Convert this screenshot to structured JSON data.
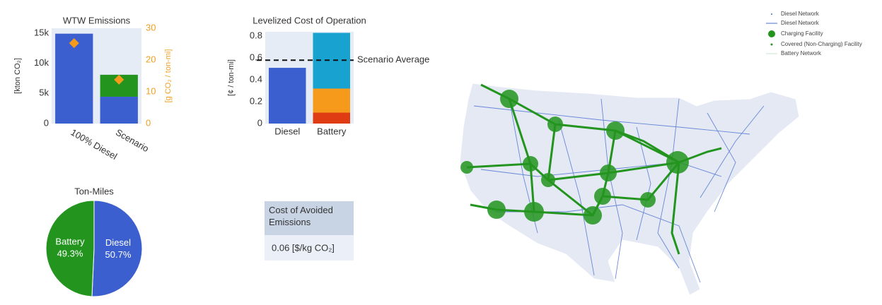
{
  "chart_data": [
    {
      "type": "bar",
      "title": "WTW Emissions",
      "stacked": true,
      "categories": [
        "100% Diesel",
        "Scenario"
      ],
      "ylabel": "[kton CO₂]",
      "ylim": [
        0,
        15800
      ],
      "yticks": [
        0,
        {
          "value": 5000,
          "label": "5k"
        },
        {
          "value": 10000,
          "label": "10k"
        },
        {
          "value": 15000,
          "label": "15k"
        }
      ],
      "y2label": "[g CO₂ / ton-mi]",
      "y2lim": [
        0,
        30
      ],
      "y2ticks": [
        0,
        10,
        20,
        30
      ],
      "y2color": "#f0a020",
      "series": [
        {
          "color": "#3b5fce",
          "values": [
            14900,
            4450
          ]
        },
        {
          "color": "#23951f",
          "values": [
            0,
            3640
          ]
        },
        {
          "color": "#f59a1a",
          "type": "scatter",
          "axis": "y2",
          "values": [
            25.3,
            13.8
          ]
        }
      ]
    },
    {
      "type": "bar",
      "title": "Levelized Cost of Operation",
      "stacked": true,
      "categories": [
        "Diesel",
        "Battery"
      ],
      "ylabel": "[¢ / ton-mi]",
      "ylim": [
        0,
        0.84
      ],
      "yticks": [
        0,
        0.2,
        0.4,
        0.6,
        0.8
      ],
      "series": [
        {
          "color": "#3b5fce",
          "values": [
            0.51,
            0
          ]
        },
        {
          "color": "#e03c14",
          "values": [
            0,
            0.1
          ]
        },
        {
          "color": "#f59a1a",
          "values": [
            0,
            0.22
          ]
        },
        {
          "color": "#17a2d0",
          "values": [
            0,
            0.51
          ]
        }
      ],
      "reference_line": {
        "value": 0.58,
        "label": "Scenario Average"
      }
    },
    {
      "type": "pie",
      "title": "Ton-Miles",
      "categories": [
        "Diesel",
        "Battery"
      ],
      "values": [
        50.7,
        49.3
      ],
      "value_labels": [
        "50.7%",
        "49.3%"
      ],
      "colors": [
        "#3b5fce",
        "#23951f"
      ]
    }
  ],
  "table": {
    "header": "Cost of Avoided Emissions",
    "cell": "0.06 [$/kg CO₂]"
  },
  "map_legend": [
    "Diesel Network",
    "Diesel Network",
    "Charging Facility",
    "Covered (Non-Charging) Facility",
    "Battery Network"
  ]
}
